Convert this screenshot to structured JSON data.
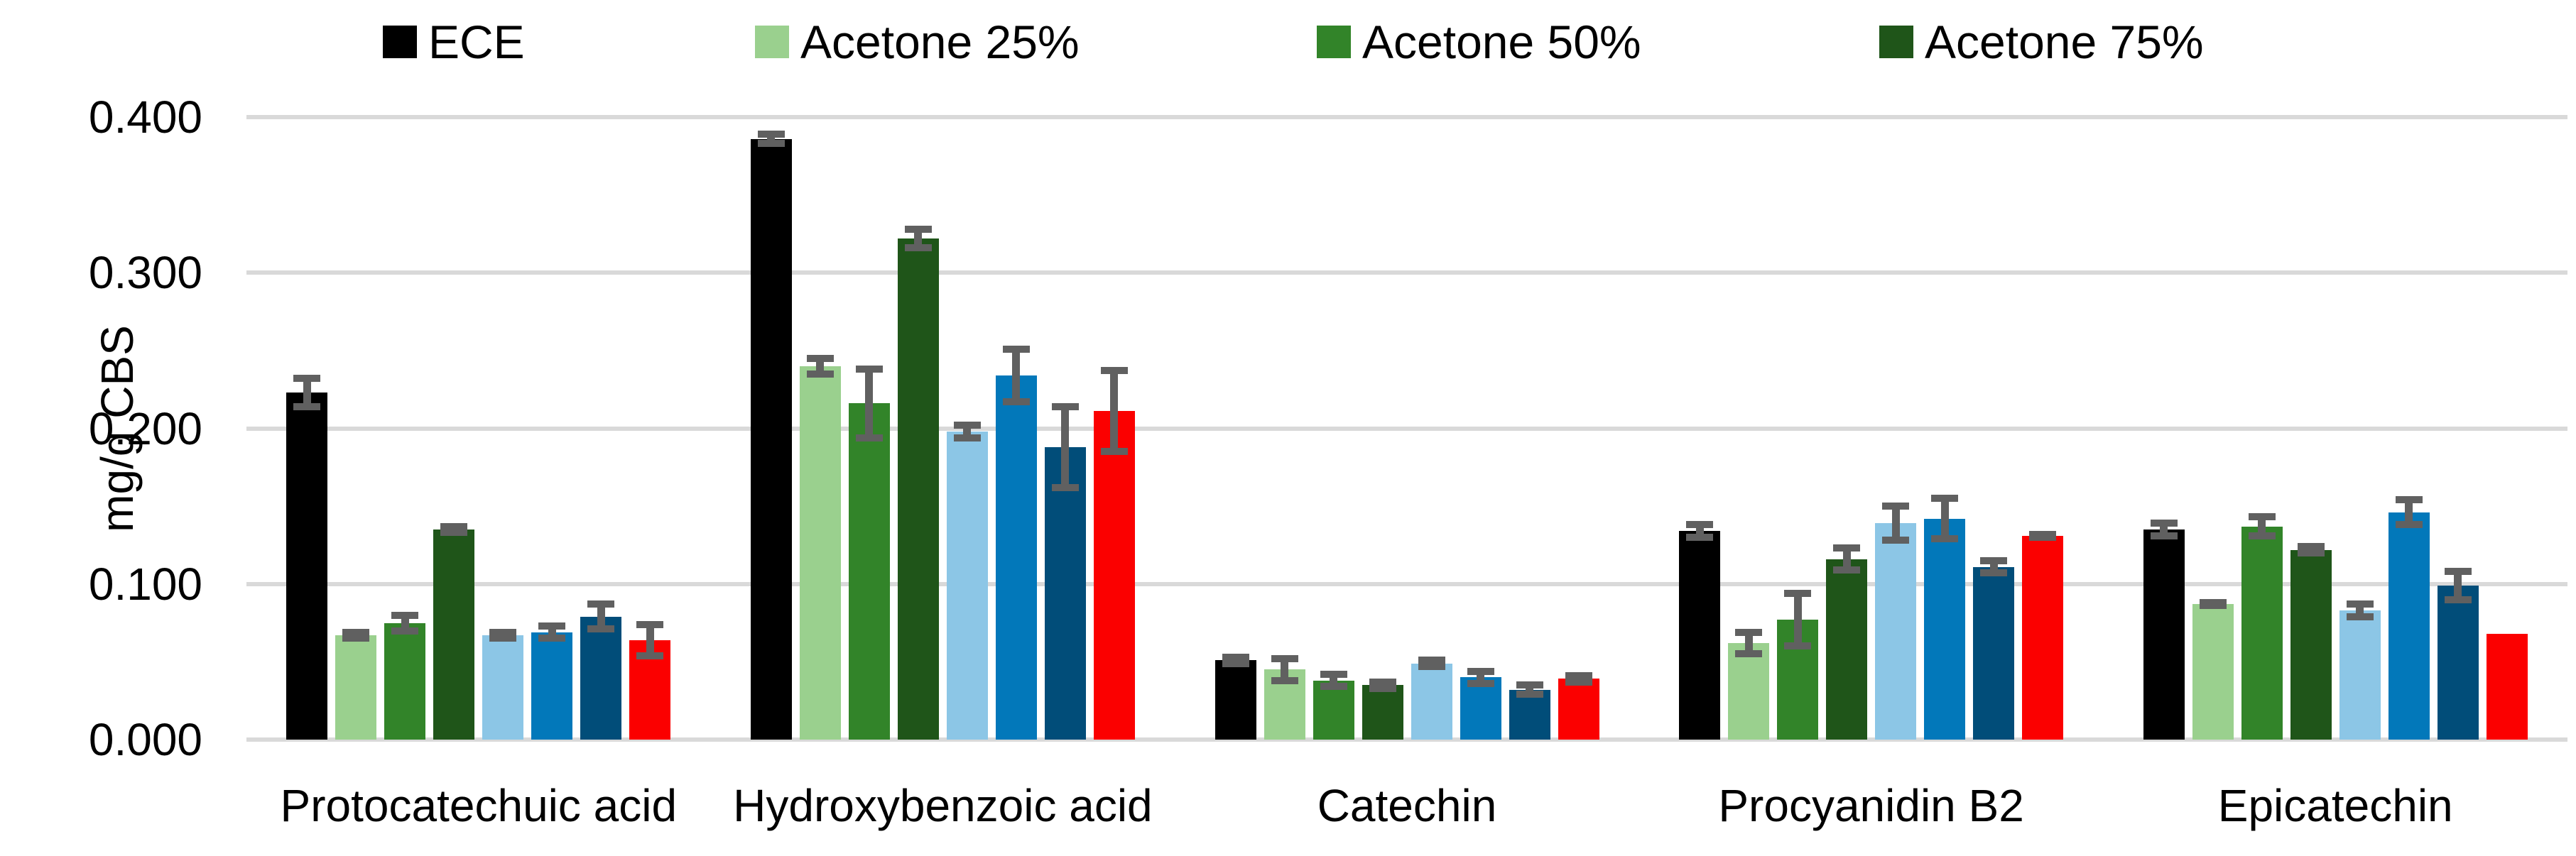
{
  "colors": {
    "background": "#FFFFFF",
    "gridline": "#D9D9D9",
    "error_bar": "#606060",
    "text": "#000000"
  },
  "chart_data": {
    "type": "bar",
    "title": "",
    "xlabel": "",
    "ylabel": "mg/g CBS",
    "ylim": [
      0,
      0.4
    ],
    "yticks": [
      0.0,
      0.1,
      0.2,
      0.3,
      0.4
    ],
    "ytick_labels": [
      "0.000",
      "0.100",
      "0.200",
      "0.300",
      "0.400"
    ],
    "grid": "horizontal gridlines only, light grey",
    "legend_position": "top",
    "error_bars": "symmetric, grey, on most bars",
    "categories": [
      "Protocatechuic acid",
      "Hydroxybenzoic acid",
      "Catechin",
      "Procyanidin B2",
      "Epicatechin"
    ],
    "series": [
      {
        "label": "ECE",
        "legend_visible": true,
        "color": "#000000",
        "values": [
          0.223,
          0.386,
          0.051,
          0.134,
          0.135
        ],
        "errors": [
          0.009,
          0.003,
          0.002,
          0.004,
          0.004
        ]
      },
      {
        "label": "Acetone 25%",
        "legend_visible": true,
        "color": "#9AD08E",
        "values": [
          0.067,
          0.24,
          0.045,
          0.062,
          0.087
        ],
        "errors": [
          0.002,
          0.005,
          0.007,
          0.007,
          0.001
        ]
      },
      {
        "label": "Acetone 50%",
        "legend_visible": true,
        "color": "#328429",
        "values": [
          0.075,
          0.216,
          0.038,
          0.077,
          0.137
        ],
        "errors": [
          0.005,
          0.022,
          0.004,
          0.017,
          0.006
        ]
      },
      {
        "label": "Acetone 75%",
        "legend_visible": true,
        "color": "#1F5519",
        "values": [
          0.135,
          0.322,
          0.035,
          0.116,
          0.122
        ],
        "errors": [
          0.002,
          0.006,
          0.002,
          0.007,
          0.002
        ]
      },
      {
        "label": "",
        "legend_visible": false,
        "color": "#8CC6E6",
        "values": [
          0.067,
          0.198,
          0.049,
          0.139,
          0.083
        ],
        "errors": [
          0.002,
          0.004,
          0.002,
          0.011,
          0.004
        ]
      },
      {
        "label": "",
        "legend_visible": false,
        "color": "#0278BA",
        "values": [
          0.069,
          0.234,
          0.04,
          0.142,
          0.146
        ],
        "errors": [
          0.004,
          0.017,
          0.004,
          0.013,
          0.008
        ]
      },
      {
        "label": "",
        "legend_visible": false,
        "color": "#014D79",
        "values": [
          0.079,
          0.188,
          0.032,
          0.111,
          0.099
        ],
        "errors": [
          0.008,
          0.026,
          0.003,
          0.004,
          0.009
        ]
      },
      {
        "label": "",
        "legend_visible": false,
        "color": "#FB0000",
        "values": [
          0.064,
          0.211,
          0.039,
          0.131,
          0.068
        ],
        "errors": [
          0.01,
          0.026,
          0.002,
          0.001,
          null
        ]
      }
    ]
  },
  "legend": {
    "items": [
      {
        "label": "ECE"
      },
      {
        "label": "Acetone 25%"
      },
      {
        "label": "Acetone 50%"
      },
      {
        "label": "Acetone 75%"
      }
    ]
  }
}
